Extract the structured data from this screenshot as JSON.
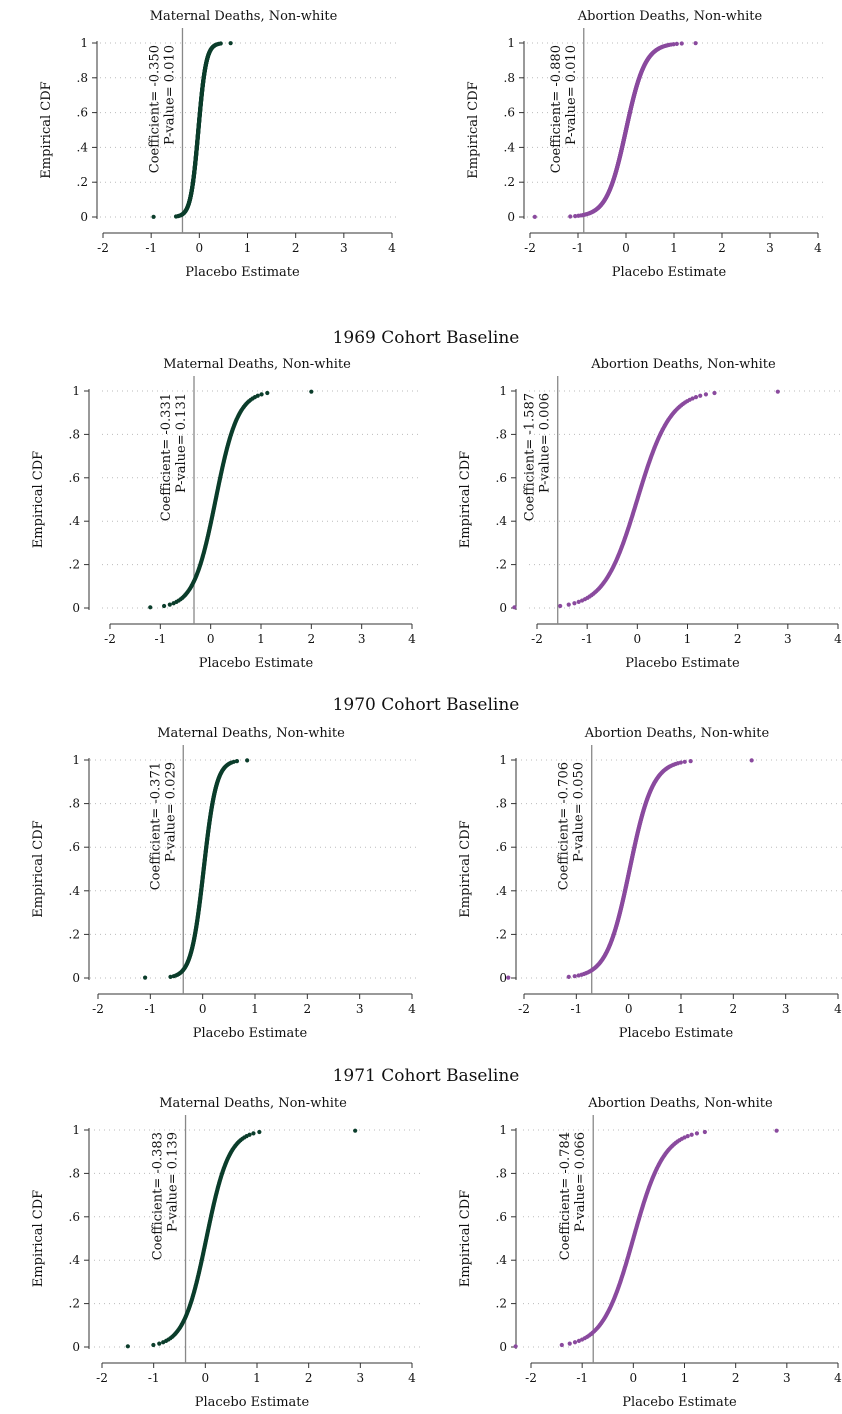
{
  "panel_titles": [
    "1969 Cohort Baseline",
    "1970 Cohort Baseline",
    "1971 Cohort Baseline"
  ],
  "colors": {
    "maternal": "#0b3d2b",
    "abortion": "#8a4a9e",
    "refline": "#888888"
  },
  "chart_data": [
    {
      "id": "r0-maternal",
      "type": "scatter",
      "title": "Maternal Deaths, Non-white",
      "xlabel": "Placebo Estimate",
      "ylabel": "Empirical CDF",
      "xlim": [
        -2,
        4
      ],
      "ylim": [
        0,
        1
      ],
      "xticks": [
        "-2",
        "-1",
        "0",
        "1",
        "2",
        "3",
        "4"
      ],
      "yticks": [
        "0",
        ".2",
        ".4",
        ".6",
        ".8",
        "1"
      ],
      "grid": true,
      "series_color": "maternal",
      "coefficient": -0.35,
      "coef_text": "Coefficient=  -0.350",
      "pval_text": "P-value=  0.010",
      "distribution": {
        "center": -0.02,
        "scale": 0.08,
        "n": 500,
        "min": -0.95,
        "max": 0.65
      }
    },
    {
      "id": "r0-abortion",
      "type": "scatter",
      "title": "Abortion Deaths, Non-white",
      "xlabel": "Placebo Estimate",
      "ylabel": "Empirical CDF",
      "xlim": [
        -2,
        4
      ],
      "ylim": [
        0,
        1
      ],
      "xticks": [
        "-2",
        "-1",
        "0",
        "1",
        "2",
        "3",
        "4"
      ],
      "yticks": [
        "0",
        ".2",
        ".4",
        ".6",
        ".8",
        "1"
      ],
      "grid": true,
      "series_color": "abortion",
      "coefficient": -0.88,
      "coef_text": "Coefficient=  -0.880",
      "pval_text": "P-value=  0.010",
      "distribution": {
        "center": 0.0,
        "scale": 0.2,
        "n": 500,
        "min": -1.9,
        "max": 1.45
      }
    },
    {
      "id": "r1-maternal",
      "type": "scatter",
      "title": "Maternal Deaths, Non-white",
      "xlabel": "Placebo Estimate",
      "ylabel": "Empirical CDF",
      "xlim": [
        -2,
        4
      ],
      "ylim": [
        0,
        1
      ],
      "xticks": [
        "-2",
        "-1",
        "0",
        "1",
        "2",
        "3",
        "4"
      ],
      "yticks": [
        "0",
        ".2",
        ".4",
        ".6",
        ".8",
        "1"
      ],
      "grid": true,
      "series_color": "maternal",
      "coefficient": -0.331,
      "coef_text": "Coefficient=  -0.331",
      "pval_text": "P-value=  0.131",
      "distribution": {
        "center": 0.1,
        "scale": 0.22,
        "n": 160,
        "min": -1.2,
        "max": 2.0
      }
    },
    {
      "id": "r1-abortion",
      "type": "scatter",
      "title": "Abortion Deaths, Non-white",
      "xlabel": "Placebo Estimate",
      "ylabel": "Empirical CDF",
      "xlim": [
        -2,
        4
      ],
      "ylim": [
        0,
        1
      ],
      "xticks": [
        "-2",
        "-1",
        "0",
        "1",
        "2",
        "3",
        "4"
      ],
      "yticks": [
        "0",
        ".2",
        ".4",
        ".6",
        ".8",
        "1"
      ],
      "grid": true,
      "series_color": "abortion",
      "coefficient": -1.587,
      "coef_text": "Coefficient=  -1.587",
      "pval_text": "P-value=  0.006",
      "distribution": {
        "center": 0.0,
        "scale": 0.33,
        "n": 160,
        "min": -2.45,
        "max": 2.8
      }
    },
    {
      "id": "r2-maternal",
      "type": "scatter",
      "title": "Maternal Deaths, Non-white",
      "xlabel": "Placebo Estimate",
      "ylabel": "Empirical CDF",
      "xlim": [
        -2,
        4
      ],
      "ylim": [
        0,
        1
      ],
      "xticks": [
        "-2",
        "-1",
        "0",
        "1",
        "2",
        "3",
        "4"
      ],
      "yticks": [
        "0",
        ".2",
        ".4",
        ".6",
        ".8",
        "1"
      ],
      "grid": true,
      "series_color": "maternal",
      "coefficient": -0.371,
      "coef_text": "Coefficient=  -0.371",
      "pval_text": "P-value=  0.029",
      "distribution": {
        "center": 0.02,
        "scale": 0.12,
        "n": 300,
        "min": -1.1,
        "max": 0.85
      }
    },
    {
      "id": "r2-abortion",
      "type": "scatter",
      "title": "Abortion Deaths, Non-white",
      "xlabel": "Placebo Estimate",
      "ylabel": "Empirical CDF",
      "xlim": [
        -2,
        4
      ],
      "ylim": [
        0,
        1
      ],
      "xticks": [
        "-2",
        "-1",
        "0",
        "1",
        "2",
        "3",
        "4"
      ],
      "yticks": [
        "0",
        ".2",
        ".4",
        ".6",
        ".8",
        "1"
      ],
      "grid": true,
      "series_color": "abortion",
      "coefficient": -0.706,
      "coef_text": "Coefficient=  -0.706",
      "pval_text": "P-value=  0.050",
      "distribution": {
        "center": 0.02,
        "scale": 0.22,
        "n": 300,
        "min": -2.3,
        "max": 2.35
      }
    },
    {
      "id": "r3-maternal",
      "type": "scatter",
      "title": "Maternal Deaths, Non-white",
      "xlabel": "Placebo Estimate",
      "ylabel": "Empirical CDF",
      "xlim": [
        -2,
        4
      ],
      "ylim": [
        0,
        1
      ],
      "xticks": [
        "-2",
        "-1",
        "0",
        "1",
        "2",
        "3",
        "4"
      ],
      "yticks": [
        "0",
        ".2",
        ".4",
        ".6",
        ".8",
        "1"
      ],
      "grid": true,
      "series_color": "maternal",
      "coefficient": -0.383,
      "coef_text": "Coefficient=  -0.383",
      "pval_text": "P-value=  0.139",
      "distribution": {
        "center": 0.02,
        "scale": 0.22,
        "n": 160,
        "min": -1.5,
        "max": 2.9
      }
    },
    {
      "id": "r3-abortion",
      "type": "scatter",
      "title": "Abortion Deaths, Non-white",
      "xlabel": "Placebo Estimate",
      "ylabel": "Empirical CDF",
      "xlim": [
        -2,
        4
      ],
      "ylim": [
        0,
        1
      ],
      "xticks": [
        "-2",
        "-1",
        "0",
        "1",
        "2",
        "3",
        "4"
      ],
      "yticks": [
        "0",
        ".2",
        ".4",
        ".6",
        ".8",
        "1"
      ],
      "grid": true,
      "series_color": "abortion",
      "coefficient": -0.784,
      "coef_text": "Coefficient=  -0.784",
      "pval_text": "P-value=  0.066",
      "distribution": {
        "center": 0.0,
        "scale": 0.3,
        "n": 160,
        "min": -2.3,
        "max": 2.8
      }
    }
  ]
}
